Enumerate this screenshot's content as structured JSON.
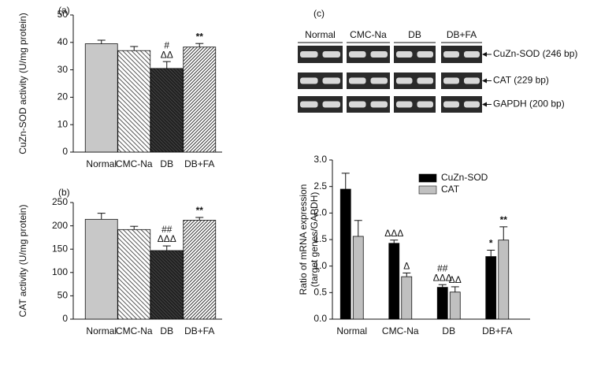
{
  "chart_data": [
    {
      "type": "bar",
      "panel_label": "(a)",
      "ylabel": "CuZn-SOD activity (U/mg protein)",
      "categories": [
        "Normal",
        "CMC-Na",
        "DB",
        "DB+FA"
      ],
      "values": [
        39.5,
        37,
        30.5,
        38.3
      ],
      "errors": [
        1.3,
        1.5,
        2.5,
        1.3
      ],
      "colors": [
        "#c8c8c8",
        "url(#hatch-light)",
        "url(#hatch-cross)",
        "url(#hatch-dark)"
      ],
      "ylim": [
        0,
        50
      ],
      "yticks": [
        0,
        10,
        20,
        30,
        40,
        50
      ],
      "annotations": [
        {
          "category": "DB",
          "text": [
            "#",
            "ΔΔ"
          ]
        },
        {
          "category": "DB+FA",
          "text": [
            "**"
          ]
        }
      ]
    },
    {
      "type": "bar",
      "panel_label": "(b)",
      "ylabel": "CAT activity (U/mg protein)",
      "categories": [
        "Normal",
        "CMC-Na",
        "DB",
        "DB+FA"
      ],
      "values": [
        214,
        192,
        147,
        212
      ],
      "errors": [
        13,
        7,
        10,
        6
      ],
      "colors": [
        "#c8c8c8",
        "url(#hatch-light)",
        "url(#hatch-cross)",
        "url(#hatch-dark)"
      ],
      "ylim": [
        0,
        250
      ],
      "yticks": [
        0,
        50,
        100,
        150,
        200,
        250
      ],
      "annotations": [
        {
          "category": "DB",
          "text": [
            "##",
            "ΔΔΔ"
          ]
        },
        {
          "category": "DB+FA",
          "text": [
            "**"
          ]
        }
      ]
    },
    {
      "type": "bar",
      "panel_label": "(c)",
      "ylabel": [
        "Ratio of mRNA expression",
        "(target genes/GAPDH)"
      ],
      "categories": [
        "Normal",
        "CMC-Na",
        "DB",
        "DB+FA"
      ],
      "series": [
        {
          "name": "CuZn-SOD",
          "color": "#000000",
          "values": [
            2.45,
            1.43,
            0.6,
            1.18
          ],
          "errors": [
            0.3,
            0.06,
            0.05,
            0.12
          ]
        },
        {
          "name": "CAT",
          "color": "#c0c0c0",
          "values": [
            1.56,
            0.8,
            0.51,
            1.49
          ],
          "errors": [
            0.3,
            0.07,
            0.1,
            0.25
          ]
        }
      ],
      "ylim": [
        0,
        3
      ],
      "yticks": [
        {
          "value": 0,
          "label": "0.0"
        },
        {
          "value": 0.5,
          "label": "0.5"
        },
        {
          "value": 1,
          "label": "1.0"
        },
        {
          "value": 1.5,
          "label": "1.5"
        },
        {
          "value": 2,
          "label": "2.0"
        },
        {
          "value": 2.5,
          "label": "2.5"
        },
        {
          "value": 3,
          "label": "3.0"
        }
      ],
      "legend": "top-right",
      "annotations": [
        {
          "category": "CMC-Na",
          "series": "CuZn-SOD",
          "text": [
            "ΔΔΔ"
          ]
        },
        {
          "category": "CMC-Na",
          "series": "CAT",
          "text": [
            "Δ"
          ]
        },
        {
          "category": "DB",
          "series": "CuZn-SOD",
          "text": [
            "##",
            "ΔΔΔ"
          ]
        },
        {
          "category": "DB",
          "series": "CAT",
          "text": [
            "ΔΔ"
          ]
        },
        {
          "category": "DB+FA",
          "series": "CuZn-SOD",
          "text": [
            "*"
          ]
        },
        {
          "category": "DB+FA",
          "series": "CAT",
          "text": [
            "**"
          ]
        }
      ]
    }
  ],
  "gel": {
    "lanes": [
      "Normal",
      "CMC-Na",
      "DB",
      "DB+FA"
    ],
    "bands": [
      "CuZn-SOD (246 bp)",
      "CAT (229 bp)",
      "GAPDH (200 bp)"
    ]
  }
}
